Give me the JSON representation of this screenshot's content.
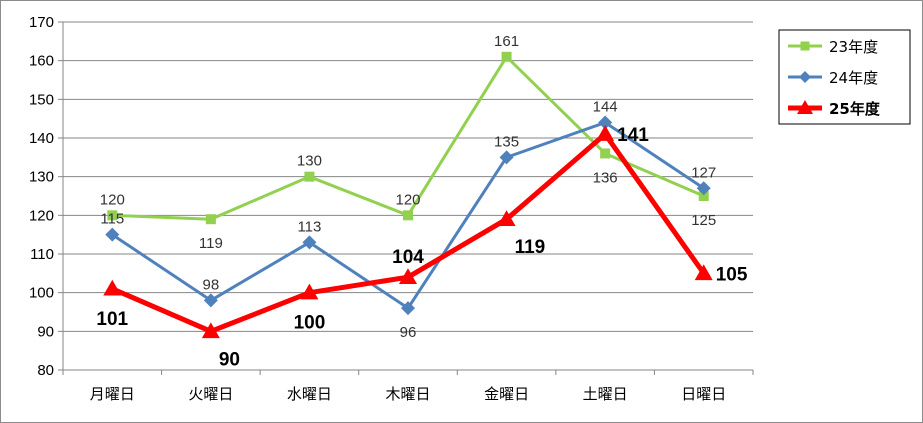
{
  "chart_data": {
    "type": "line",
    "categories": [
      "月曜日",
      "火曜日",
      "水曜日",
      "木曜日",
      "金曜日",
      "土曜日",
      "日曜日"
    ],
    "ylim": [
      80,
      170
    ],
    "yticks": [
      80,
      90,
      100,
      110,
      120,
      130,
      140,
      150,
      160,
      170
    ],
    "grid": true,
    "legend_position": "top-right",
    "series": [
      {
        "name": "23年度",
        "values": [
          120,
          119,
          130,
          120,
          161,
          136,
          125
        ],
        "color": "#92D050",
        "marker": "square",
        "label_style": "normal",
        "label_pos": [
          "above",
          "below",
          "above",
          "above",
          "above",
          "below",
          "below"
        ]
      },
      {
        "name": "24年度",
        "values": [
          115,
          98,
          113,
          96,
          135,
          144,
          127
        ],
        "color": "#4F81BD",
        "marker": "diamond",
        "label_style": "normal",
        "label_pos": [
          "above",
          "above",
          "above",
          "below",
          "above",
          "above",
          "above"
        ]
      },
      {
        "name": "25年度",
        "values": [
          101,
          90,
          100,
          104,
          119,
          141,
          105
        ],
        "color": "#FF0000",
        "marker": "triangle",
        "label_style": "bold",
        "label_pos": [
          "below",
          "below-right",
          "below",
          "above",
          "below-right",
          "right",
          "right"
        ]
      }
    ]
  }
}
